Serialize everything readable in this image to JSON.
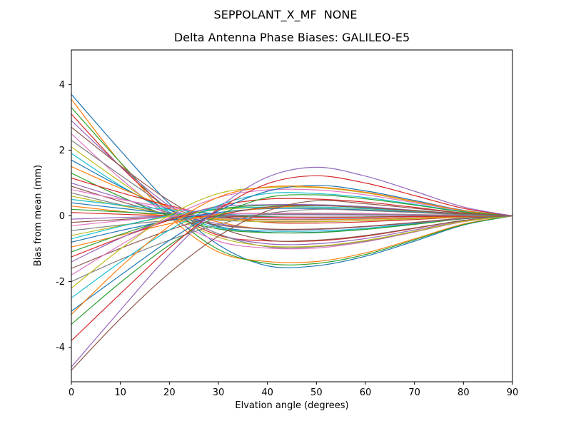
{
  "chart_data": {
    "type": "line",
    "title": "SEPPOLANT_X_MF  NONE",
    "subtitle": "Delta Antenna Phase Biases: GALILEO-E5",
    "xlabel": "Elvation angle (degrees)",
    "ylabel": "Bias from mean (mm)",
    "xlim": [
      0,
      90
    ],
    "ylim": [
      -5.05,
      5.05
    ],
    "x_ticks": [
      0,
      10,
      20,
      30,
      40,
      50,
      60,
      70,
      80,
      90
    ],
    "y_ticks": [
      -4,
      -2,
      0,
      2,
      4
    ],
    "grid": false,
    "legend": false,
    "palette": [
      "#1f77b4",
      "#ff7f0e",
      "#2ca02c",
      "#d62728",
      "#9467bd",
      "#8c564b",
      "#e377c2",
      "#7f7f7f",
      "#bcbd22",
      "#17becf"
    ],
    "x": [
      0,
      10,
      20,
      30,
      40,
      50,
      60,
      70,
      80,
      90
    ],
    "series": [
      {
        "values": [
          3.7,
          1.99,
          0.37,
          -0.88,
          -1.52,
          -1.52,
          -1.23,
          -0.77,
          -0.28,
          0
        ]
      },
      {
        "values": [
          3.55,
          1.62,
          -0.03,
          -1.1,
          -1.39,
          -1.39,
          -1.13,
          -0.7,
          -0.25,
          0
        ]
      },
      {
        "values": [
          3.3,
          1.63,
          0.1,
          -1.02,
          -1.45,
          -1.45,
          -1.18,
          -0.73,
          -0.27,
          0
        ]
      },
      {
        "values": [
          3.1,
          1.5,
          0.2,
          -0.59,
          -0.76,
          -0.76,
          -0.62,
          -0.38,
          -0.14,
          0
        ]
      },
      {
        "values": [
          2.9,
          1.51,
          0.3,
          -0.55,
          -0.85,
          -0.85,
          -0.69,
          -0.43,
          -0.16,
          0
        ]
      },
      {
        "values": [
          2.7,
          1.52,
          0.46,
          -0.34,
          -0.74,
          -0.74,
          -0.6,
          -0.37,
          -0.14,
          0
        ]
      },
      {
        "values": [
          2.5,
          1.14,
          -0.02,
          -0.77,
          -0.98,
          -0.98,
          -0.79,
          -0.49,
          -0.18,
          0
        ]
      },
      {
        "values": [
          2.3,
          1.24,
          0.23,
          -0.55,
          -0.94,
          -0.94,
          -0.77,
          -0.48,
          -0.17,
          0
        ]
      },
      {
        "values": [
          2.1,
          1.04,
          0.06,
          -0.65,
          -0.92,
          -0.92,
          -0.75,
          -0.47,
          -0.17,
          0
        ]
      },
      {
        "values": [
          1.9,
          0.92,
          0.12,
          -0.36,
          -0.46,
          -0.46,
          -0.38,
          -0.23,
          -0.09,
          0
        ]
      },
      {
        "values": [
          1.7,
          0.89,
          0.18,
          -0.32,
          -0.5,
          -0.5,
          -0.41,
          -0.25,
          -0.09,
          0
        ]
      },
      {
        "values": [
          1.5,
          0.84,
          0.26,
          -0.19,
          -0.41,
          -0.41,
          -0.33,
          -0.21,
          -0.08,
          0
        ]
      },
      {
        "values": [
          1.3,
          0.59,
          -0.01,
          -0.4,
          -0.51,
          -0.51,
          -0.41,
          -0.26,
          -0.09,
          0
        ]
      },
      {
        "values": [
          1.15,
          0.71,
          0.31,
          0.0,
          -0.2,
          -0.22,
          -0.18,
          -0.11,
          -0.04,
          0
        ]
      },
      {
        "values": [
          1.0,
          0.54,
          0.1,
          -0.24,
          -0.41,
          -0.41,
          -0.33,
          -0.21,
          -0.08,
          0
        ]
      },
      {
        "values": [
          0.9,
          0.44,
          0.03,
          -0.28,
          -0.4,
          -0.4,
          -0.32,
          -0.2,
          -0.07,
          0
        ]
      },
      {
        "values": [
          0.8,
          0.5,
          0.25,
          0.05,
          -0.07,
          -0.09,
          -0.08,
          -0.05,
          -0.02,
          0
        ]
      },
      {
        "values": [
          0.7,
          0.34,
          0.05,
          -0.13,
          -0.17,
          -0.17,
          -0.14,
          -0.09,
          -0.03,
          0
        ]
      },
      {
        "values": [
          0.6,
          0.31,
          0.06,
          -0.11,
          -0.18,
          -0.18,
          -0.14,
          -0.09,
          -0.03,
          0
        ]
      },
      {
        "values": [
          0.5,
          0.33,
          0.19,
          0.07,
          -0.02,
          -0.05,
          -0.04,
          -0.02,
          -0.01,
          0
        ]
      },
      {
        "values": [
          0.4,
          0.23,
          0.07,
          -0.05,
          -0.11,
          -0.11,
          -0.09,
          -0.06,
          -0.02,
          0
        ]
      },
      {
        "values": [
          0.3,
          0.14,
          0.0,
          -0.09,
          -0.12,
          -0.12,
          -0.1,
          -0.06,
          -0.02,
          0
        ]
      },
      {
        "values": [
          0.2,
          0.12,
          0.05,
          0.0,
          -0.03,
          -0.04,
          -0.03,
          -0.02,
          -0.01,
          0
        ]
      },
      {
        "values": [
          0.1,
          0.05,
          0.0,
          -0.03,
          -0.04,
          -0.04,
          -0.04,
          -0.02,
          -0.01,
          0
        ]
      },
      {
        "values": [
          -0.1,
          -0.05,
          -0.01,
          0.02,
          0.03,
          0.03,
          0.02,
          0.01,
          0.01,
          0
        ]
      },
      {
        "values": [
          -0.2,
          -0.11,
          -0.02,
          0.05,
          0.08,
          0.08,
          0.07,
          0.04,
          0.02,
          0
        ]
      },
      {
        "values": [
          -0.3,
          -0.15,
          -0.02,
          0.06,
          0.07,
          0.07,
          0.06,
          0.04,
          0.01,
          0
        ]
      },
      {
        "values": [
          -0.45,
          -0.28,
          -0.14,
          -0.03,
          0.04,
          0.05,
          0.04,
          0.03,
          0.01,
          0
        ]
      },
      {
        "values": [
          -0.6,
          -0.3,
          -0.02,
          0.19,
          0.26,
          0.26,
          0.21,
          0.13,
          0.05,
          0
        ]
      },
      {
        "values": [
          -0.7,
          -0.32,
          0.01,
          0.22,
          0.27,
          0.27,
          0.22,
          0.14,
          0.05,
          0
        ]
      },
      {
        "values": [
          -0.8,
          -0.45,
          -0.14,
          0.1,
          0.22,
          0.22,
          0.18,
          0.11,
          0.04,
          0
        ]
      },
      {
        "values": [
          -0.95,
          -0.59,
          -0.24,
          0.05,
          0.24,
          0.31,
          0.25,
          0.15,
          0.06,
          0
        ]
      },
      {
        "values": [
          -1.1,
          -0.57,
          -0.11,
          0.21,
          0.32,
          0.32,
          0.26,
          0.16,
          0.06,
          0
        ]
      },
      {
        "values": [
          -1.25,
          -0.67,
          -0.13,
          0.3,
          0.51,
          0.51,
          0.42,
          0.26,
          0.09,
          0
        ]
      },
      {
        "values": [
          -1.4,
          -0.68,
          -0.09,
          0.27,
          0.34,
          0.34,
          0.28,
          0.17,
          0.06,
          0
        ]
      },
      {
        "values": [
          -1.6,
          -0.99,
          -0.43,
          0.01,
          0.27,
          0.31,
          0.25,
          0.16,
          0.06,
          0
        ]
      },
      {
        "values": [
          -1.8,
          -0.89,
          -0.05,
          0.56,
          0.79,
          0.79,
          0.64,
          0.4,
          0.15,
          0
        ]
      },
      {
        "values": [
          -2.0,
          -1.33,
          -0.74,
          -0.26,
          0.07,
          0.2,
          0.16,
          0.1,
          0.04,
          0
        ]
      },
      {
        "values": [
          -2.2,
          -1.01,
          0.02,
          0.68,
          0.86,
          0.86,
          0.7,
          0.43,
          0.16,
          0
        ]
      },
      {
        "values": [
          -2.5,
          -1.41,
          -0.43,
          0.32,
          0.68,
          0.68,
          0.56,
          0.35,
          0.13,
          0
        ]
      },
      {
        "values": [
          -2.9,
          -1.81,
          -0.75,
          0.15,
          0.75,
          0.93,
          0.76,
          0.47,
          0.17,
          0
        ]
      },
      {
        "values": [
          -3.0,
          -1.56,
          -0.31,
          0.57,
          0.88,
          0.88,
          0.72,
          0.44,
          0.16,
          0
        ]
      },
      {
        "values": [
          -3.3,
          -2.03,
          -0.89,
          0.01,
          0.56,
          0.64,
          0.52,
          0.33,
          0.12,
          0
        ]
      },
      {
        "values": [
          -3.8,
          -2.37,
          -0.98,
          0.19,
          0.98,
          1.22,
          1.0,
          0.62,
          0.23,
          0
        ]
      },
      {
        "values": [
          -4.6,
          -2.87,
          -1.18,
          0.24,
          1.18,
          1.48,
          1.21,
          0.75,
          0.27,
          0
        ]
      },
      {
        "values": [
          -4.7,
          -3.13,
          -1.74,
          -0.62,
          0.15,
          0.46,
          0.37,
          0.23,
          0.08,
          0
        ]
      }
    ]
  }
}
